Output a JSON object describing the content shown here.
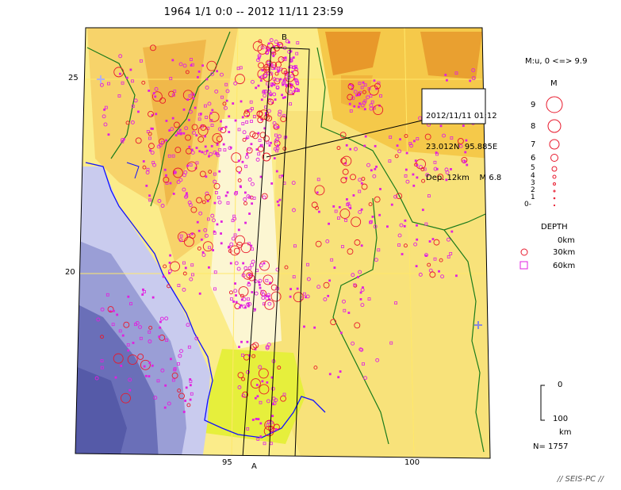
{
  "title": "1964 1/1 0:0 -- 2012 11/11 23:59",
  "lat_labels": [
    "25",
    "20"
  ],
  "lon_labels": [
    "95",
    "100"
  ],
  "profile_labels": {
    "start": "A",
    "end": "B"
  },
  "event_box": {
    "line1": "2012/11/11 01:12",
    "line2": "23.012N  95.885E",
    "line3": "Dep. 12km    M 6.8"
  },
  "magnitude_legend": {
    "header": "M:u, 0 <=> 9.9",
    "title": "M",
    "levels": [
      "9",
      "8",
      "7",
      "6",
      "5",
      "4",
      "3",
      "2",
      "1",
      "0-"
    ]
  },
  "depth_legend": {
    "title": "DEPTH",
    "items": [
      "0km",
      "30km",
      "60km"
    ]
  },
  "depth_scale": {
    "top": "0",
    "bottom": "100",
    "unit": "km"
  },
  "count": "N= 1757",
  "footer": "// SEIS-PC //",
  "colors": {
    "event_shallow": "#e8192c",
    "event_deep": "#e020e0",
    "sea_deep": "#5a5fae",
    "sea_shallow": "#d8daf2",
    "land_low": "#fbf2b6",
    "land_mid": "#f6c832",
    "land_high": "#e6881a",
    "coast": "#1010ff",
    "border": "#1a7a1a",
    "lowland": "#e8f040"
  }
}
